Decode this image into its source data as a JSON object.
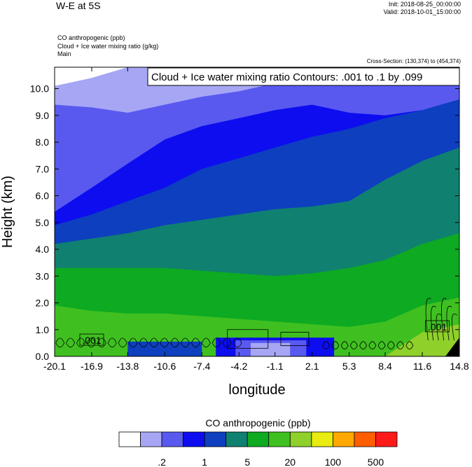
{
  "header": {
    "title": "W-E at 5S",
    "init": "Init: 2018-08-25_00:00:00",
    "valid": "Valid: 2018-10-01_15:00:00",
    "fields": [
      "CO anthropogenic   (ppb)",
      "Cloud + Ice water mixing ratio   (g/kg)",
      "Main"
    ],
    "cross_section": "Cross-Section: (130,374) to (454,374)"
  },
  "chart_data": {
    "type": "heatmap",
    "title": "",
    "xlabel": "longitude",
    "ylabel": "Height (km)",
    "x_ticks": [
      "-20.1",
      "-16.9",
      "-13.8",
      "-10.6",
      "-7.4",
      "-4.2",
      "-1.1",
      "2.1",
      "5.3",
      "8.4",
      "11.6",
      "14.8"
    ],
    "y_ticks": [
      "0.0",
      "1.0",
      "2.0",
      "3.0",
      "4.0",
      "5.0",
      "6.0",
      "7.0",
      "8.0",
      "9.0",
      "10.0"
    ],
    "xlim": [
      -20.1,
      14.8
    ],
    "ylim": [
      0,
      10.8
    ],
    "contour_annotation": "Cloud + Ice water mixing ratio Contours: .001 to .1 by .099",
    "contour_labels": [
      {
        "text": ".001",
        "x": -16.9,
        "y": 0.6
      },
      {
        "text": ".001",
        "x": 12.9,
        "y": 1.1
      }
    ],
    "colorbar": {
      "title": "CO anthropogenic  (ppb)",
      "colors": [
        "#ffffff",
        "#a6a6f5",
        "#5959f0",
        "#0d0df0",
        "#0d3fbf",
        "#108070",
        "#0daa22",
        "#3fc020",
        "#8fd02a",
        "#e8ec10",
        "#ffa800",
        "#ff5e00",
        "#ff1a1a"
      ],
      "labels": [
        ".2",
        "1",
        "5",
        "20",
        "100",
        "500"
      ],
      "label_boundaries": [
        2,
        4,
        6,
        8,
        10,
        12
      ]
    },
    "layers": [
      {
        "level": 1,
        "y": [
          10.1,
          10.4,
          10.8,
          10.8,
          10.8,
          10.8,
          10.8,
          10.8,
          10.8,
          10.8,
          10.8,
          10.8
        ]
      },
      {
        "level": 2,
        "y": [
          9.4,
          9.3,
          9.1,
          9.4,
          9.7,
          9.9,
          10.2,
          10.4,
          10.6,
          10.8,
          10.8,
          10.8
        ]
      },
      {
        "level": 3,
        "y": [
          5.4,
          6.3,
          7.2,
          8.1,
          8.6,
          8.9,
          9.2,
          9.4,
          9.1,
          9.0,
          9.2,
          9.3
        ]
      },
      {
        "level": 4,
        "y": [
          4.9,
          5.3,
          5.8,
          6.3,
          7.0,
          7.4,
          7.8,
          8.2,
          8.5,
          8.9,
          9.2,
          9.6
        ]
      },
      {
        "level": 5,
        "y": [
          4.2,
          4.4,
          4.6,
          4.9,
          5.1,
          5.3,
          5.5,
          5.6,
          5.8,
          6.6,
          7.3,
          7.8
        ]
      },
      {
        "level": 6,
        "y": [
          3.3,
          3.3,
          3.3,
          3.3,
          3.2,
          3.1,
          3.0,
          3.1,
          3.3,
          3.6,
          4.2,
          4.6
        ]
      },
      {
        "level": 7,
        "y": [
          1.9,
          1.7,
          1.6,
          1.6,
          1.5,
          1.4,
          1.3,
          1.2,
          1.1,
          1.3,
          1.9,
          2.2
        ]
      },
      {
        "level": 8,
        "y": [
          0.0,
          0.0,
          0.0,
          0.0,
          0.0,
          0.0,
          0.0,
          0.0,
          0.0,
          0.0,
          0.9,
          1.2
        ]
      }
    ],
    "surface_bands": [
      {
        "level": 4,
        "x0": -13.8,
        "x1": -7.4,
        "ytop": 0.55
      },
      {
        "level": 3,
        "x0": -6.2,
        "x1": 4.0,
        "ytop": 0.7
      },
      {
        "level": 2,
        "x0": -4.5,
        "x1": 1.6,
        "ytop": 0.6
      },
      {
        "level": 1,
        "x0": -3.2,
        "x1": 0.2,
        "ytop": 0.5
      }
    ]
  }
}
